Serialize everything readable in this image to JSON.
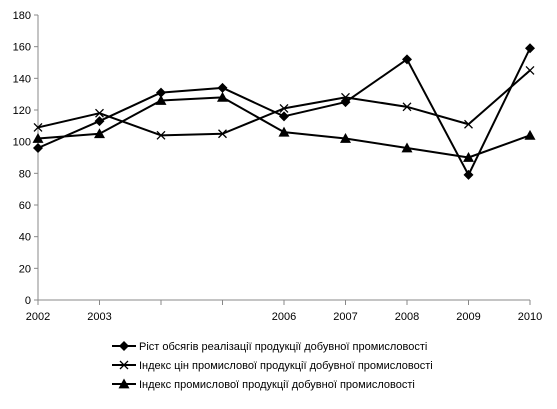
{
  "chart_data": {
    "type": "line",
    "x": [
      "2002",
      "2003",
      "2004",
      "2005",
      "2006",
      "2007",
      "2008",
      "2009",
      "2010"
    ],
    "x_tick_labels": [
      "2002",
      "2003",
      "",
      "",
      "2006",
      "2007",
      "2008",
      "2009",
      "2010"
    ],
    "ylim": [
      0,
      180
    ],
    "y_ticks": [
      0,
      20,
      40,
      60,
      80,
      100,
      120,
      140,
      160,
      180
    ],
    "grid": false,
    "legend_position": "bottom",
    "series": [
      {
        "name": "Ріст обсягів реалізації продукції добувної промисловості",
        "marker": "diamond",
        "values": [
          96,
          113,
          131,
          134,
          116,
          125,
          152,
          79,
          159
        ]
      },
      {
        "name": "Індекс цін промислової продукції добувної промисловості",
        "marker": "x",
        "values": [
          109,
          118,
          104,
          105,
          121,
          128,
          122,
          111,
          145
        ]
      },
      {
        "name": "Індекс промислової продукції добувної промисловості",
        "marker": "triangle",
        "values": [
          102,
          105,
          126,
          128,
          106,
          102,
          96,
          90,
          104
        ]
      }
    ]
  }
}
